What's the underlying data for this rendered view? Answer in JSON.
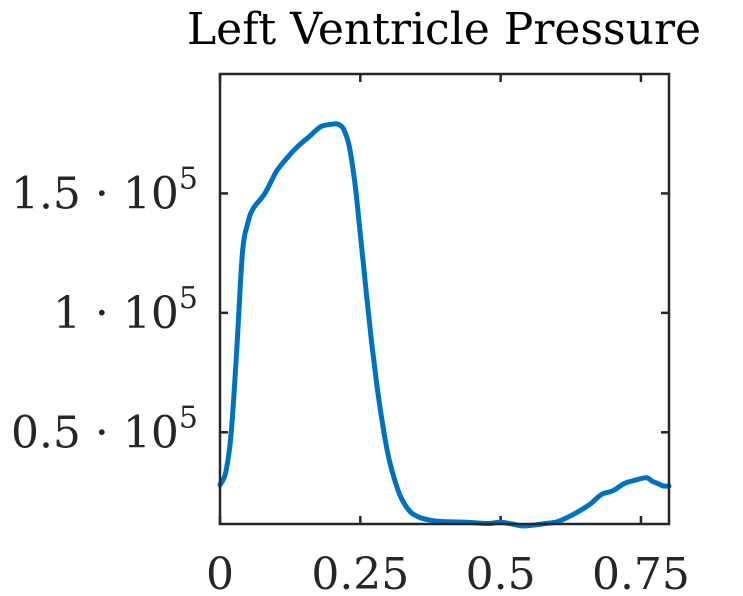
{
  "chart_data": {
    "type": "line",
    "title": "Left Ventricle Pressure",
    "xlabel": "",
    "ylabel": "",
    "xlim": [
      0,
      0.8
    ],
    "ylim": [
      11600,
      200000
    ],
    "grid": false,
    "legend": "none",
    "x_ticks": [
      {
        "value": 0,
        "label": "0"
      },
      {
        "value": 0.25,
        "label": "0.25"
      },
      {
        "value": 0.5,
        "label": "0.5"
      },
      {
        "value": 0.75,
        "label": "0.75"
      }
    ],
    "y_ticks": [
      {
        "value": 50000,
        "mantissa": "0.5",
        "base": "10",
        "exponent": "5"
      },
      {
        "value": 100000,
        "mantissa": "1",
        "base": "10",
        "exponent": "5"
      },
      {
        "value": 150000,
        "mantissa": "1.5",
        "base": "10",
        "exponent": "5"
      }
    ],
    "series": [
      {
        "name": "Left Ventricle Pressure",
        "color": "#0072BD",
        "x": [
          0,
          0.01,
          0.02,
          0.03,
          0.04,
          0.05,
          0.06,
          0.08,
          0.1,
          0.12,
          0.14,
          0.16,
          0.18,
          0.2,
          0.21,
          0.22,
          0.23,
          0.24,
          0.25,
          0.26,
          0.27,
          0.28,
          0.29,
          0.3,
          0.31,
          0.32,
          0.33,
          0.34,
          0.35,
          0.36,
          0.38,
          0.4,
          0.42,
          0.44,
          0.46,
          0.48,
          0.5,
          0.52,
          0.54,
          0.56,
          0.58,
          0.6,
          0.62,
          0.64,
          0.66,
          0.68,
          0.7,
          0.72,
          0.74,
          0.76,
          0.77,
          0.78,
          0.79,
          0.8
        ],
        "values": [
          28000,
          33000,
          50000,
          85000,
          125000,
          138000,
          144000,
          150000,
          159000,
          165000,
          170000,
          174000,
          178000,
          179000,
          179000,
          177000,
          170000,
          155000,
          133000,
          110000,
          88000,
          69000,
          53000,
          40000,
          31000,
          24000,
          19500,
          16500,
          15000,
          14000,
          13000,
          12600,
          12500,
          12300,
          12000,
          11800,
          12300,
          11600,
          10800,
          11200,
          11800,
          12500,
          14500,
          17000,
          20000,
          24000,
          25500,
          28500,
          30000,
          31000,
          29500,
          28500,
          27500,
          27500
        ]
      }
    ]
  }
}
